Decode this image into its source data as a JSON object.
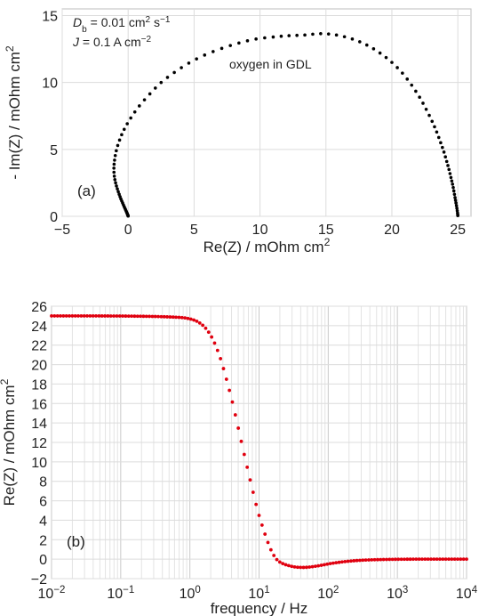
{
  "chart_data": [
    {
      "type": "scatter",
      "panel_label": "(a)",
      "annotations": [
        {
          "parts": [
            {
              "t": "D",
              "i": true
            },
            {
              "t": "b",
              "sub": true
            },
            {
              "t": " = 0.01 cm"
            },
            {
              "t": "2",
              "sup": true
            },
            {
              "t": " s"
            },
            {
              "t": "−1",
              "sup": true
            }
          ]
        },
        {
          "parts": [
            {
              "t": "J",
              "i": true
            },
            {
              "t": " = 0.1 A cm"
            },
            {
              "t": "−2",
              "sup": true
            }
          ]
        },
        {
          "parts": [
            {
              "t": "oxygen in GDL"
            }
          ]
        }
      ],
      "xlabel": "Re(Z) / mOhm cm²",
      "ylabel": "- Im(Z) / mOhm cm²",
      "xlim": [
        -5,
        26
      ],
      "ylim": [
        0,
        15.5
      ],
      "xticks": [
        -5,
        0,
        5,
        10,
        15,
        20,
        25
      ],
      "yticks": [
        0,
        5,
        10,
        15
      ],
      "xticklabels": [
        "−5",
        "0",
        "5",
        "10",
        "15",
        "20",
        "25"
      ],
      "yticklabels": [
        "0",
        "5",
        "10",
        "15"
      ],
      "grid": true,
      "marker_color": "#000000",
      "points": [
        [
          25.0,
          0.05
        ],
        [
          24.98,
          0.25
        ],
        [
          24.93,
          0.6
        ],
        [
          24.86,
          1.0
        ],
        [
          24.79,
          1.4
        ],
        [
          24.7,
          1.9
        ],
        [
          24.6,
          2.4
        ],
        [
          24.48,
          2.9
        ],
        [
          24.33,
          3.5
        ],
        [
          24.16,
          4.1
        ],
        [
          23.95,
          4.8
        ],
        [
          23.7,
          5.5
        ],
        [
          23.4,
          6.3
        ],
        [
          23.05,
          7.1
        ],
        [
          22.6,
          8.0
        ],
        [
          22.1,
          8.9
        ],
        [
          21.5,
          9.8
        ],
        [
          20.8,
          10.7
        ],
        [
          20.0,
          11.5
        ],
        [
          19.1,
          12.2
        ],
        [
          18.1,
          12.8
        ],
        [
          17.0,
          13.25
        ],
        [
          15.8,
          13.55
        ],
        [
          14.6,
          13.65
        ],
        [
          13.4,
          13.55
        ],
        [
          12.2,
          13.5
        ],
        [
          11.0,
          13.4
        ],
        [
          9.7,
          13.25
        ],
        [
          8.4,
          12.95
        ],
        [
          7.1,
          12.55
        ],
        [
          5.8,
          12.05
        ],
        [
          4.6,
          11.45
        ],
        [
          3.5,
          10.75
        ],
        [
          2.5,
          10.0
        ],
        [
          1.65,
          9.15
        ],
        [
          0.85,
          8.25
        ],
        [
          0.2,
          7.35
        ],
        [
          -0.3,
          6.5
        ],
        [
          -0.65,
          5.7
        ],
        [
          -0.9,
          4.9
        ],
        [
          -1.03,
          4.2
        ],
        [
          -1.08,
          3.6
        ],
        [
          -1.05,
          3.0
        ],
        [
          -0.95,
          2.5
        ],
        [
          -0.82,
          2.05
        ],
        [
          -0.68,
          1.65
        ],
        [
          -0.55,
          1.3
        ],
        [
          -0.42,
          1.0
        ],
        [
          -0.3,
          0.72
        ],
        [
          -0.2,
          0.5
        ],
        [
          -0.12,
          0.32
        ],
        [
          -0.06,
          0.18
        ],
        [
          -0.02,
          0.08
        ],
        [
          0.0,
          0.02
        ]
      ]
    },
    {
      "type": "scatter",
      "panel_label": "(b)",
      "xlabel": "frequency / Hz",
      "ylabel": "Re(Z) / mOhm cm²",
      "xscale": "log",
      "xlim": [
        0.01,
        10000
      ],
      "ylim": [
        -2,
        26
      ],
      "xtick_exponents": [
        -2,
        -1,
        0,
        1,
        2,
        3,
        4
      ],
      "yticks": [
        -2,
        0,
        2,
        4,
        6,
        8,
        10,
        12,
        14,
        16,
        18,
        20,
        22,
        24,
        26
      ],
      "yticklabels": [
        "−2",
        "0",
        "2",
        "4",
        "6",
        "8",
        "10",
        "12",
        "14",
        "16",
        "18",
        "20",
        "22",
        "24",
        "26"
      ],
      "grid": true,
      "marker_color": "#e0000f",
      "points": [
        [
          0.01,
          25.0
        ],
        [
          0.1,
          24.99
        ],
        [
          0.5,
          24.9
        ],
        [
          1.0,
          24.7
        ],
        [
          1.5,
          24.1
        ],
        [
          2.0,
          23.0
        ],
        [
          2.5,
          21.5
        ],
        [
          3.0,
          19.8
        ],
        [
          4.0,
          16.5
        ],
        [
          5.0,
          13.5
        ],
        [
          6.0,
          11.0
        ],
        [
          8.0,
          7.2
        ],
        [
          10.0,
          4.5
        ],
        [
          13.0,
          2.0
        ],
        [
          16.0,
          0.5
        ],
        [
          20.0,
          -0.3
        ],
        [
          30.0,
          -0.75
        ],
        [
          45.0,
          -0.85
        ],
        [
          70.0,
          -0.7
        ],
        [
          120.0,
          -0.4
        ],
        [
          250.0,
          -0.15
        ],
        [
          600.0,
          -0.04
        ],
        [
          2000.0,
          0.0
        ],
        [
          10000.0,
          0.0
        ]
      ]
    }
  ]
}
